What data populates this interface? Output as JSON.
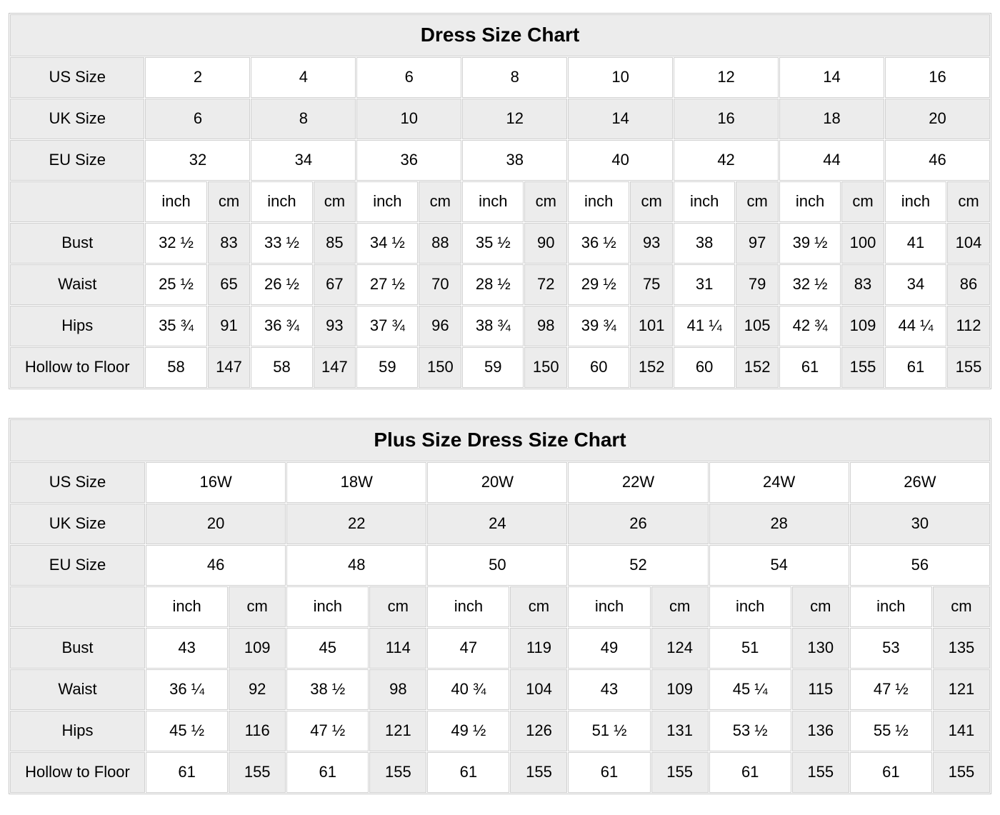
{
  "style": {
    "shaded_cell_bg": "#ececec",
    "plain_cell_bg": "#ffffff",
    "grid_border": "#d0d0d0",
    "text_color": "#000000"
  },
  "tables": [
    {
      "id": "dress-size-chart",
      "title": "Dress Size Chart",
      "unit_labels": [
        "inch",
        "cm"
      ],
      "size_rows": [
        {
          "label": "US Size",
          "values": [
            "2",
            "4",
            "6",
            "8",
            "10",
            "12",
            "14",
            "16"
          ]
        },
        {
          "label": "UK Size",
          "values": [
            "6",
            "8",
            "10",
            "12",
            "14",
            "16",
            "18",
            "20"
          ]
        },
        {
          "label": "EU Size",
          "values": [
            "32",
            "34",
            "36",
            "38",
            "40",
            "42",
            "44",
            "46"
          ]
        }
      ],
      "measurement_rows": [
        {
          "label": "Bust",
          "inch": [
            "32 ½",
            "33 ½",
            "34 ½",
            "35 ½",
            "36 ½",
            "38",
            "39 ½",
            "41"
          ],
          "cm": [
            "83",
            "85",
            "88",
            "90",
            "93",
            "97",
            "100",
            "104"
          ]
        },
        {
          "label": "Waist",
          "inch": [
            "25 ½",
            "26 ½",
            "27 ½",
            "28 ½",
            "29 ½",
            "31",
            "32 ½",
            "34"
          ],
          "cm": [
            "65",
            "67",
            "70",
            "72",
            "75",
            "79",
            "83",
            "86"
          ]
        },
        {
          "label": "Hips",
          "inch": [
            "35 ¾",
            "36 ¾",
            "37 ¾",
            "38 ¾",
            "39 ¾",
            "41 ¼",
            "42 ¾",
            "44 ¼"
          ],
          "cm": [
            "91",
            "93",
            "96",
            "98",
            "101",
            "105",
            "109",
            "112"
          ]
        },
        {
          "label": "Hollow to Floor",
          "inch": [
            "58",
            "58",
            "59",
            "59",
            "60",
            "60",
            "61",
            "61"
          ],
          "cm": [
            "147",
            "147",
            "150",
            "150",
            "152",
            "152",
            "155",
            "155"
          ]
        }
      ]
    },
    {
      "id": "plus-size-dress-size-chart",
      "title": "Plus Size Dress Size Chart",
      "unit_labels": [
        "inch",
        "cm"
      ],
      "size_rows": [
        {
          "label": "US Size",
          "values": [
            "16W",
            "18W",
            "20W",
            "22W",
            "24W",
            "26W"
          ]
        },
        {
          "label": "UK Size",
          "values": [
            "20",
            "22",
            "24",
            "26",
            "28",
            "30"
          ]
        },
        {
          "label": "EU Size",
          "values": [
            "46",
            "48",
            "50",
            "52",
            "54",
            "56"
          ]
        }
      ],
      "measurement_rows": [
        {
          "label": "Bust",
          "inch": [
            "43",
            "45",
            "47",
            "49",
            "51",
            "53"
          ],
          "cm": [
            "109",
            "114",
            "119",
            "124",
            "130",
            "135"
          ]
        },
        {
          "label": "Waist",
          "inch": [
            "36 ¼",
            "38 ½",
            "40 ¾",
            "43",
            "45 ¼",
            "47 ½"
          ],
          "cm": [
            "92",
            "98",
            "104",
            "109",
            "115",
            "121"
          ]
        },
        {
          "label": "Hips",
          "inch": [
            "45 ½",
            "47 ½",
            "49 ½",
            "51 ½",
            "53 ½",
            "55 ½"
          ],
          "cm": [
            "116",
            "121",
            "126",
            "131",
            "136",
            "141"
          ]
        },
        {
          "label": "Hollow to Floor",
          "inch": [
            "61",
            "61",
            "61",
            "61",
            "61",
            "61"
          ],
          "cm": [
            "155",
            "155",
            "155",
            "155",
            "155",
            "155"
          ]
        }
      ]
    }
  ]
}
